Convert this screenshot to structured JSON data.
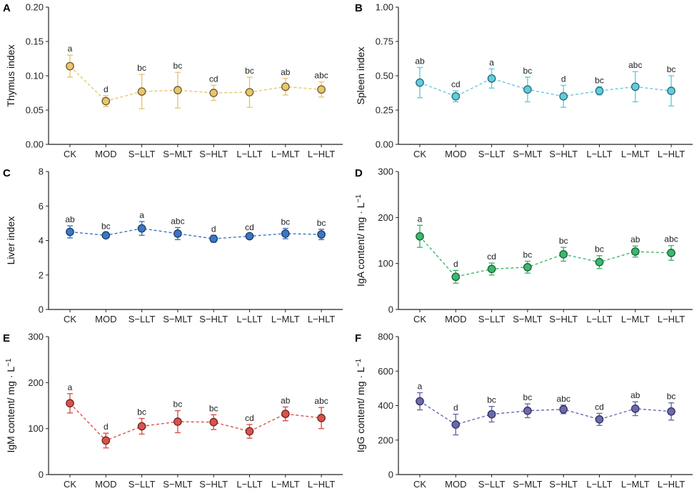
{
  "chart_data": [
    {
      "panel": "A",
      "type": "scatter",
      "ylabel": "Thymus index",
      "categories": [
        "CK",
        "MOD",
        "S−LLT",
        "S−MLT",
        "S−HLT",
        "L−LLT",
        "L−MLT",
        "L−HLT"
      ],
      "values": [
        0.114,
        0.063,
        0.077,
        0.079,
        0.075,
        0.076,
        0.084,
        0.08
      ],
      "errors": [
        0.016,
        0.008,
        0.025,
        0.026,
        0.011,
        0.022,
        0.012,
        0.011
      ],
      "letters": [
        "a",
        "d",
        "bc",
        "bc",
        "cd",
        "bc",
        "ab",
        "abc"
      ],
      "ylim": [
        0,
        0.2
      ],
      "yticks": [
        "0.00",
        "0.05",
        "0.10",
        "0.15",
        "0.20"
      ],
      "color": "#e8c66e",
      "edge": "#6b5a2a"
    },
    {
      "panel": "B",
      "type": "scatter",
      "ylabel": "Spleen index",
      "categories": [
        "CK",
        "MOD",
        "S−LLT",
        "S−MLT",
        "S−HLT",
        "L−LLT",
        "L−MLT",
        "L−HLT"
      ],
      "values": [
        0.45,
        0.35,
        0.48,
        0.4,
        0.35,
        0.39,
        0.42,
        0.39
      ],
      "errors": [
        0.11,
        0.04,
        0.07,
        0.09,
        0.08,
        0.03,
        0.11,
        0.11
      ],
      "letters": [
        "ab",
        "cd",
        "a",
        "bc",
        "d",
        "bc",
        "abc",
        "bc"
      ],
      "ylim": [
        0,
        1
      ],
      "yticks": [
        "0.00",
        "0.25",
        "0.50",
        "0.75",
        "1.00"
      ],
      "color": "#5fcde0",
      "edge": "#2d6470"
    },
    {
      "panel": "C",
      "type": "scatter",
      "ylabel": "Liver index",
      "categories": [
        "CK",
        "MOD",
        "S−LLT",
        "S−MLT",
        "S−HLT",
        "L−LLT",
        "L−MLT",
        "L−HLT"
      ],
      "values": [
        4.5,
        4.3,
        4.7,
        4.4,
        4.1,
        4.25,
        4.4,
        4.35
      ],
      "errors": [
        0.35,
        0.15,
        0.4,
        0.35,
        0.2,
        0.15,
        0.3,
        0.3
      ],
      "letters": [
        "ab",
        "bc",
        "a",
        "abc",
        "d",
        "cd",
        "bc",
        "bc"
      ],
      "ylim": [
        0,
        8
      ],
      "yticks": [
        "0",
        "2",
        "4",
        "6",
        "8"
      ],
      "color": "#3a77c4",
      "edge": "#1d3c63"
    },
    {
      "panel": "D",
      "type": "scatter",
      "ylabel": "IgA content/ mg · L",
      "ylabel_sup": "−1",
      "categories": [
        "CK",
        "MOD",
        "S−LLT",
        "S−MLT",
        "S−HLT",
        "L−LLT",
        "L−MLT",
        "L−HLT"
      ],
      "values": [
        159,
        71,
        88,
        92,
        120,
        103,
        126,
        123
      ],
      "errors": [
        24,
        14,
        13,
        13,
        15,
        14,
        12,
        16
      ],
      "letters": [
        "a",
        "d",
        "cd",
        "bc",
        "bc",
        "bc",
        "ab",
        "abc"
      ],
      "ylim": [
        0,
        300
      ],
      "yticks": [
        "0",
        "100",
        "200",
        "300"
      ],
      "color": "#3cb86e",
      "edge": "#1f5c37"
    },
    {
      "panel": "E",
      "type": "scatter",
      "ylabel": "IgM content/ mg · L",
      "ylabel_sup": "−1",
      "categories": [
        "CK",
        "MOD",
        "S−LLT",
        "S−MLT",
        "S−HLT",
        "L−LLT",
        "L−MLT",
        "L−HLT"
      ],
      "values": [
        155,
        74,
        105,
        115,
        114,
        94,
        132,
        123
      ],
      "errors": [
        21,
        16,
        17,
        24,
        16,
        15,
        15,
        23
      ],
      "letters": [
        "a",
        "d",
        "bc",
        "bc",
        "bc",
        "cd",
        "ab",
        "abc"
      ],
      "ylim": [
        0,
        300
      ],
      "yticks": [
        "0",
        "100",
        "200",
        "300"
      ],
      "color": "#d9534a",
      "edge": "#6e2521"
    },
    {
      "panel": "F",
      "type": "scatter",
      "ylabel": "IgG content/ mg · L",
      "ylabel_sup": "−1",
      "categories": [
        "CK",
        "MOD",
        "S−LLT",
        "S−MLT",
        "S−HLT",
        "L−LLT",
        "L−MLT",
        "L−HLT"
      ],
      "values": [
        425,
        290,
        350,
        370,
        378,
        320,
        382,
        366
      ],
      "errors": [
        50,
        60,
        45,
        40,
        25,
        35,
        40,
        50
      ],
      "letters": [
        "a",
        "d",
        "bc",
        "bc",
        "abc",
        "cd",
        "ab",
        "bc"
      ],
      "ylim": [
        0,
        800
      ],
      "yticks": [
        "0",
        "200",
        "400",
        "600",
        "800"
      ],
      "color": "#6a69b0",
      "edge": "#33325a"
    }
  ]
}
